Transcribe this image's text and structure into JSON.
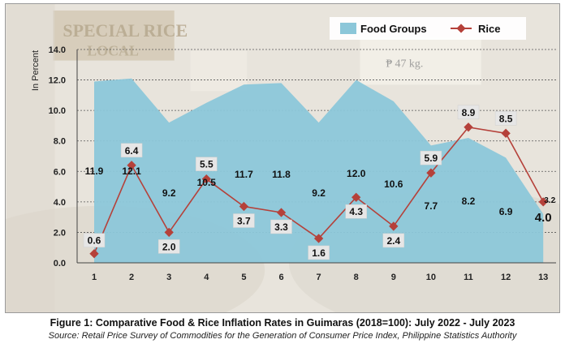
{
  "chart_data": {
    "type": "area+line",
    "x": [
      1,
      2,
      3,
      4,
      5,
      6,
      7,
      8,
      9,
      10,
      11,
      12,
      13
    ],
    "series": [
      {
        "name": "Food Groups",
        "type": "area",
        "color": "#8cc7d9",
        "values": [
          11.9,
          12.1,
          9.2,
          10.5,
          11.7,
          11.8,
          9.2,
          12.0,
          10.6,
          7.7,
          8.2,
          6.9,
          3.2
        ],
        "labels": [
          "11.9",
          "12.1",
          "9.2",
          "10.5",
          "11.7",
          "11.8",
          "9.2",
          "12.0",
          "10.6",
          "7.7",
          "8.2",
          "6.9",
          "3.2"
        ]
      },
      {
        "name": "Rice",
        "type": "line",
        "color": "#b5413a",
        "values": [
          0.6,
          6.4,
          2.0,
          5.5,
          3.7,
          3.3,
          1.6,
          4.3,
          2.4,
          5.9,
          8.9,
          8.5,
          4.0
        ],
        "labels": [
          "0.6",
          "6.4",
          "2.0",
          "5.5",
          "3.7",
          "3.3",
          "1.6",
          "4.3",
          "2.4",
          "5.9",
          "8.9",
          "8.5",
          "4.0"
        ]
      }
    ],
    "ylabel": "In Percent",
    "ylim": [
      0,
      14
    ],
    "yticks": [
      "0.0",
      "2.0",
      "4.0",
      "6.0",
      "8.0",
      "10.0",
      "12.0",
      "14.0"
    ],
    "xticks": [
      "1",
      "2",
      "3",
      "4",
      "5",
      "6",
      "7",
      "8",
      "9",
      "10",
      "11",
      "12",
      "13"
    ],
    "grid": true,
    "legend": "top-right"
  },
  "caption": {
    "title": "Figure 1: Comparative Food & Rice Inflation Rates in Guimaras (2018=100): July 2022 - July 2023",
    "source": "Source: Retail Price Survey of Commodities for the Generation of Consumer Price Index, Philippine Statistics Authority"
  },
  "background": {
    "sign_text": "SPECIAL RICE",
    "sign_sub": "LOCAL",
    "price_tag": "₱ 47  kg."
  }
}
